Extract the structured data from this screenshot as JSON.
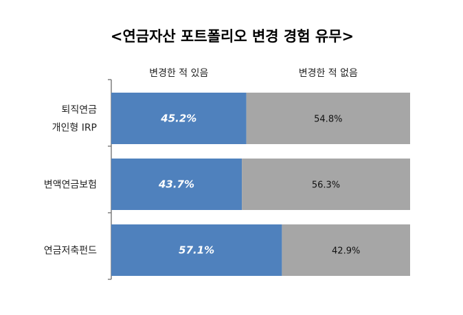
{
  "chart_data": {
    "type": "bar",
    "orientation": "horizontal",
    "stacked": true,
    "title": "<연금자산 포트폴리오 변경 경험 유무>",
    "categories": [
      [
        "퇴직연금",
        "개인형 IRP"
      ],
      [
        "변액연금보험"
      ],
      [
        "연금저축펀드"
      ]
    ],
    "series": [
      {
        "name": "변경한 적 있음",
        "color": "#4f81bd",
        "values": [
          45.2,
          43.7,
          57.1
        ],
        "labels": [
          "45.2%",
          "43.7%",
          "57.1%"
        ]
      },
      {
        "name": "변경한 적 없음",
        "color": "#a6a6a6",
        "values": [
          54.8,
          56.3,
          42.9
        ],
        "labels": [
          "54.8%",
          "56.3%",
          "42.9%"
        ]
      }
    ],
    "xlim": [
      0,
      100
    ],
    "grid": false,
    "legend": "top"
  }
}
